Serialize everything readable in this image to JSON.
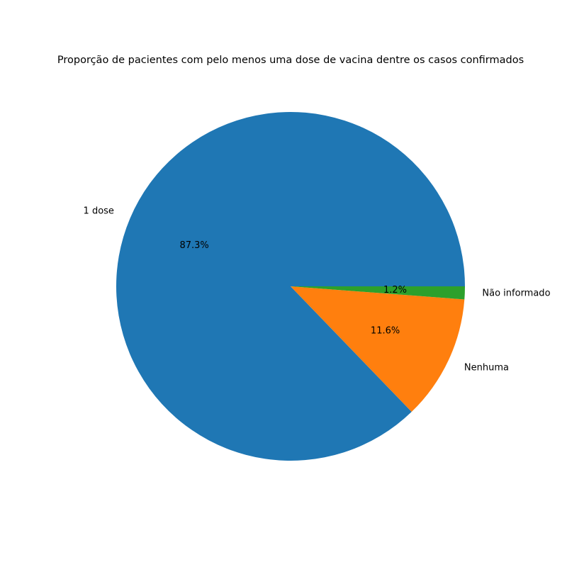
{
  "chart_data": {
    "type": "pie",
    "title": "Proporção de pacientes com pelo menos uma dose de vacina dentre os casos confirmados",
    "slices": [
      {
        "label": "1 dose",
        "value": 87.3,
        "pct_label": "87.3%",
        "color": "#1f77b4"
      },
      {
        "label": "Nenhuma",
        "value": 11.6,
        "pct_label": "11.6%",
        "color": "#ff7f0e"
      },
      {
        "label": "Não informado",
        "value": 1.2,
        "pct_label": "1.2%",
        "color": "#2ca02c"
      }
    ],
    "start_angle_deg": 0,
    "direction": "counterclockwise"
  }
}
